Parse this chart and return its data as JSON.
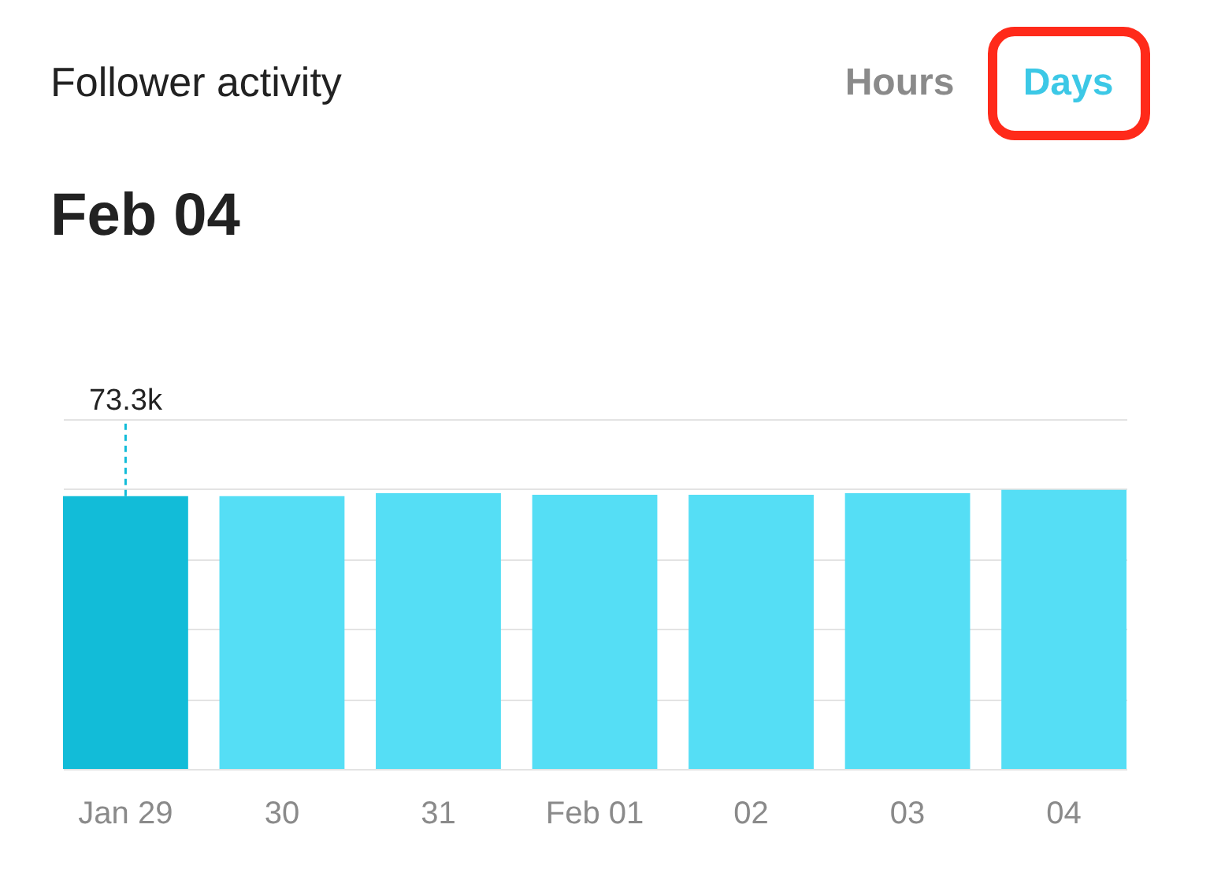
{
  "chart_data": {
    "type": "bar",
    "title": "Follower activity",
    "subtitle": "Feb 04",
    "annotations": [
      "Hours",
      "Days"
    ],
    "categories": [
      "Jan 29",
      "30",
      "31",
      "Feb 01",
      "02",
      "03",
      "04"
    ],
    "values": [
      73.3,
      73.3,
      74.1,
      73.7,
      73.7,
      74.1,
      75.0
    ],
    "colors": [
      "#12bcd8",
      "#55def5",
      "#55def5",
      "#55def5",
      "#55def5",
      "#55def5",
      "#55def5"
    ],
    "value_labels": [
      "73.3k",
      null,
      null,
      null,
      null,
      null,
      null
    ],
    "ylim": [
      0,
      94
    ],
    "yticks": [
      {
        "value": 0,
        "label": null
      },
      {
        "value": 18.8,
        "label": null
      },
      {
        "value": 37.6,
        "label": null
      },
      {
        "value": 56.4,
        "label": null
      },
      {
        "value": 75.2,
        "label": null
      },
      {
        "value": 94,
        "label": null
      }
    ],
    "tick_labels": "x",
    "grid": "y"
  }
}
